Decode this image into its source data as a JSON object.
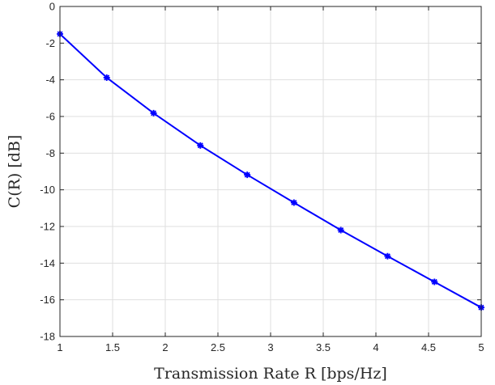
{
  "chart_data": {
    "type": "line",
    "title": "",
    "xlabel": "Transmission Rate R [bps/Hz]",
    "ylabel": "C(R) [dB]",
    "xlim": [
      1,
      5
    ],
    "ylim": [
      -18,
      0
    ],
    "xticks": [
      "1",
      "1.5",
      "2",
      "2.5",
      "3",
      "3.5",
      "4",
      "4.5",
      "5"
    ],
    "xtick_values": [
      1,
      1.5,
      2,
      2.5,
      3,
      3.5,
      4,
      4.5,
      5
    ],
    "yticks": [
      "0",
      "-2",
      "-4",
      "-6",
      "-8",
      "-10",
      "-12",
      "-14",
      "-16",
      "-18"
    ],
    "ytick_values": [
      0,
      -2,
      -4,
      -6,
      -8,
      -10,
      -12,
      -14,
      -16,
      -18
    ],
    "grid": true,
    "series": [
      {
        "color": "#0000ff",
        "marker": "asterisk",
        "x": [
          1.0,
          1.444,
          1.889,
          2.333,
          2.778,
          3.222,
          3.667,
          4.111,
          4.556,
          5.0
        ],
        "y": [
          -1.5,
          -3.88,
          -5.82,
          -7.58,
          -9.18,
          -10.7,
          -12.2,
          -13.62,
          -15.02,
          -16.42
        ]
      }
    ]
  }
}
